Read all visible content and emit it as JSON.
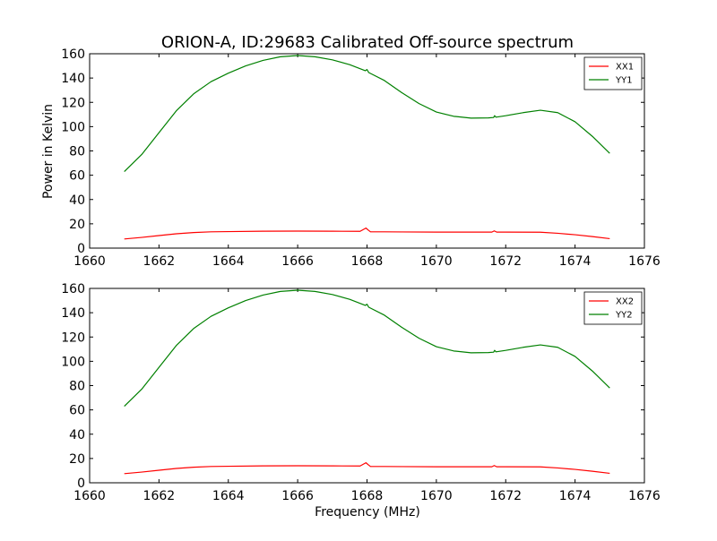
{
  "title": "ORION-A, ID:29683 Calibrated Off-source spectrum",
  "xlabel": "Frequency (MHz)",
  "ylabel": "Power in Kelvin",
  "colors": {
    "xx": "#ff0000",
    "yy": "#008000"
  },
  "chart_data": [
    {
      "type": "line",
      "xlim": [
        1660,
        1676
      ],
      "ylim": [
        0,
        160
      ],
      "xticks": [
        "1660",
        "1662",
        "1664",
        "1666",
        "1668",
        "1670",
        "1672",
        "1674",
        "1676"
      ],
      "yticks": [
        "0",
        "20",
        "40",
        "60",
        "80",
        "100",
        "120",
        "140",
        "160"
      ],
      "legend": "top-right",
      "series": [
        {
          "name": "XX1",
          "color": "#ff0000",
          "x": [
            1661.0,
            1661.5,
            1662.0,
            1662.5,
            1663.0,
            1663.5,
            1664.0,
            1665.0,
            1666.0,
            1667.0,
            1667.8,
            1667.97,
            1668.03,
            1668.1,
            1668.5,
            1669.0,
            1670.0,
            1671.0,
            1671.6,
            1671.67,
            1671.74,
            1672.0,
            1673.0,
            1673.5,
            1674.0,
            1674.5,
            1675.0
          ],
          "y": [
            7.5,
            8.8,
            10.3,
            11.8,
            12.8,
            13.4,
            13.6,
            13.9,
            14.0,
            13.9,
            13.8,
            16.5,
            15.0,
            13.4,
            13.4,
            13.3,
            13.2,
            13.2,
            13.2,
            14.2,
            13.2,
            13.2,
            13.1,
            12.2,
            11.0,
            9.5,
            7.8
          ]
        },
        {
          "name": "YY1",
          "color": "#008000",
          "x": [
            1661.0,
            1661.5,
            1662.0,
            1662.5,
            1663.0,
            1663.5,
            1664.0,
            1664.5,
            1665.0,
            1665.5,
            1666.0,
            1666.5,
            1667.0,
            1667.5,
            1667.95,
            1668.0,
            1668.05,
            1668.5,
            1669.0,
            1669.5,
            1670.0,
            1670.5,
            1671.0,
            1671.5,
            1671.65,
            1671.68,
            1671.72,
            1672.0,
            1672.5,
            1673.0,
            1673.5,
            1674.0,
            1674.5,
            1675.0
          ],
          "y": [
            63,
            77,
            95,
            113,
            127,
            137,
            144,
            150,
            154.5,
            157.5,
            158.5,
            157.5,
            155,
            151,
            146,
            147,
            144.5,
            138,
            128,
            119,
            112,
            108.5,
            107,
            107.2,
            107.5,
            109,
            107.8,
            109,
            111.5,
            113.5,
            111.5,
            104,
            92,
            78
          ]
        }
      ]
    },
    {
      "type": "line",
      "xlim": [
        1660,
        1676
      ],
      "ylim": [
        0,
        160
      ],
      "xticks": [
        "1660",
        "1662",
        "1664",
        "1666",
        "1668",
        "1670",
        "1672",
        "1674",
        "1676"
      ],
      "yticks": [
        "0",
        "20",
        "40",
        "60",
        "80",
        "100",
        "120",
        "140",
        "160"
      ],
      "legend": "top-right",
      "series": [
        {
          "name": "XX2",
          "color": "#ff0000",
          "x": [
            1661.0,
            1661.5,
            1662.0,
            1662.5,
            1663.0,
            1663.5,
            1664.0,
            1665.0,
            1666.0,
            1667.0,
            1667.8,
            1667.97,
            1668.03,
            1668.1,
            1668.5,
            1669.0,
            1670.0,
            1671.0,
            1671.6,
            1671.67,
            1671.74,
            1672.0,
            1673.0,
            1673.5,
            1674.0,
            1674.5,
            1675.0
          ],
          "y": [
            7.5,
            8.8,
            10.3,
            11.8,
            12.8,
            13.4,
            13.6,
            13.9,
            14.0,
            13.9,
            13.8,
            16.5,
            15.0,
            13.4,
            13.4,
            13.3,
            13.2,
            13.2,
            13.2,
            14.2,
            13.2,
            13.2,
            13.1,
            12.2,
            11.0,
            9.5,
            7.8
          ]
        },
        {
          "name": "YY2",
          "color": "#008000",
          "x": [
            1661.0,
            1661.5,
            1662.0,
            1662.5,
            1663.0,
            1663.5,
            1664.0,
            1664.5,
            1665.0,
            1665.5,
            1666.0,
            1666.5,
            1667.0,
            1667.5,
            1667.95,
            1668.0,
            1668.05,
            1668.5,
            1669.0,
            1669.5,
            1670.0,
            1670.5,
            1671.0,
            1671.5,
            1671.65,
            1671.68,
            1671.72,
            1672.0,
            1672.5,
            1673.0,
            1673.5,
            1674.0,
            1674.5,
            1675.0
          ],
          "y": [
            63,
            77,
            95,
            113,
            127,
            137,
            144,
            150,
            154.5,
            157.5,
            158.5,
            157.5,
            155,
            151,
            146,
            147,
            144.5,
            138,
            128,
            119,
            112,
            108.5,
            107,
            107.2,
            107.5,
            109,
            107.8,
            109,
            111.5,
            113.5,
            111.5,
            104,
            92,
            78
          ]
        }
      ]
    }
  ]
}
